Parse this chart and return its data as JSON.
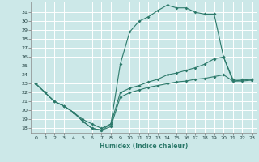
{
  "title": "",
  "xlabel": "Humidex (Indice chaleur)",
  "bg_color": "#cce8e8",
  "grid_color": "#ffffff",
  "line_color": "#2d7a6b",
  "xlim": [
    -0.5,
    23.5
  ],
  "ylim": [
    17.5,
    32.2
  ],
  "xticks": [
    0,
    1,
    2,
    3,
    4,
    5,
    6,
    7,
    8,
    9,
    10,
    11,
    12,
    13,
    14,
    15,
    16,
    17,
    18,
    19,
    20,
    21,
    22,
    23
  ],
  "yticks": [
    18,
    19,
    20,
    21,
    22,
    23,
    24,
    25,
    26,
    27,
    28,
    29,
    30,
    31
  ],
  "line1_x": [
    0,
    1,
    2,
    3,
    4,
    5,
    6,
    7,
    8,
    9,
    10,
    11,
    12,
    13,
    14,
    15,
    16,
    17,
    18,
    19,
    20,
    21,
    22,
    23
  ],
  "line1_y": [
    23.0,
    22.0,
    21.0,
    20.5,
    19.8,
    18.8,
    18.0,
    17.8,
    18.2,
    21.5,
    22.0,
    22.3,
    22.6,
    22.8,
    23.0,
    23.2,
    23.3,
    23.5,
    23.6,
    23.8,
    24.0,
    23.3,
    23.3,
    23.4
  ],
  "line2_x": [
    0,
    1,
    2,
    3,
    4,
    5,
    6,
    7,
    8,
    9,
    10,
    11,
    12,
    13,
    14,
    15,
    16,
    17,
    18,
    19,
    20,
    21,
    22,
    23
  ],
  "line2_y": [
    23.0,
    22.0,
    21.0,
    20.5,
    19.8,
    18.8,
    18.0,
    17.8,
    18.5,
    25.2,
    28.8,
    30.0,
    30.5,
    31.2,
    31.8,
    31.5,
    31.5,
    31.0,
    30.8,
    30.8,
    26.0,
    23.5,
    23.5,
    23.5
  ],
  "line3_x": [
    0,
    1,
    2,
    3,
    4,
    5,
    6,
    7,
    8,
    9,
    10,
    11,
    12,
    13,
    14,
    15,
    16,
    17,
    18,
    19,
    20,
    21,
    22,
    23
  ],
  "line3_y": [
    23.0,
    22.0,
    21.0,
    20.5,
    19.8,
    19.0,
    18.5,
    18.0,
    18.5,
    22.0,
    22.5,
    22.8,
    23.2,
    23.5,
    24.0,
    24.2,
    24.5,
    24.8,
    25.2,
    25.8,
    26.0,
    23.3,
    23.4,
    23.5
  ]
}
